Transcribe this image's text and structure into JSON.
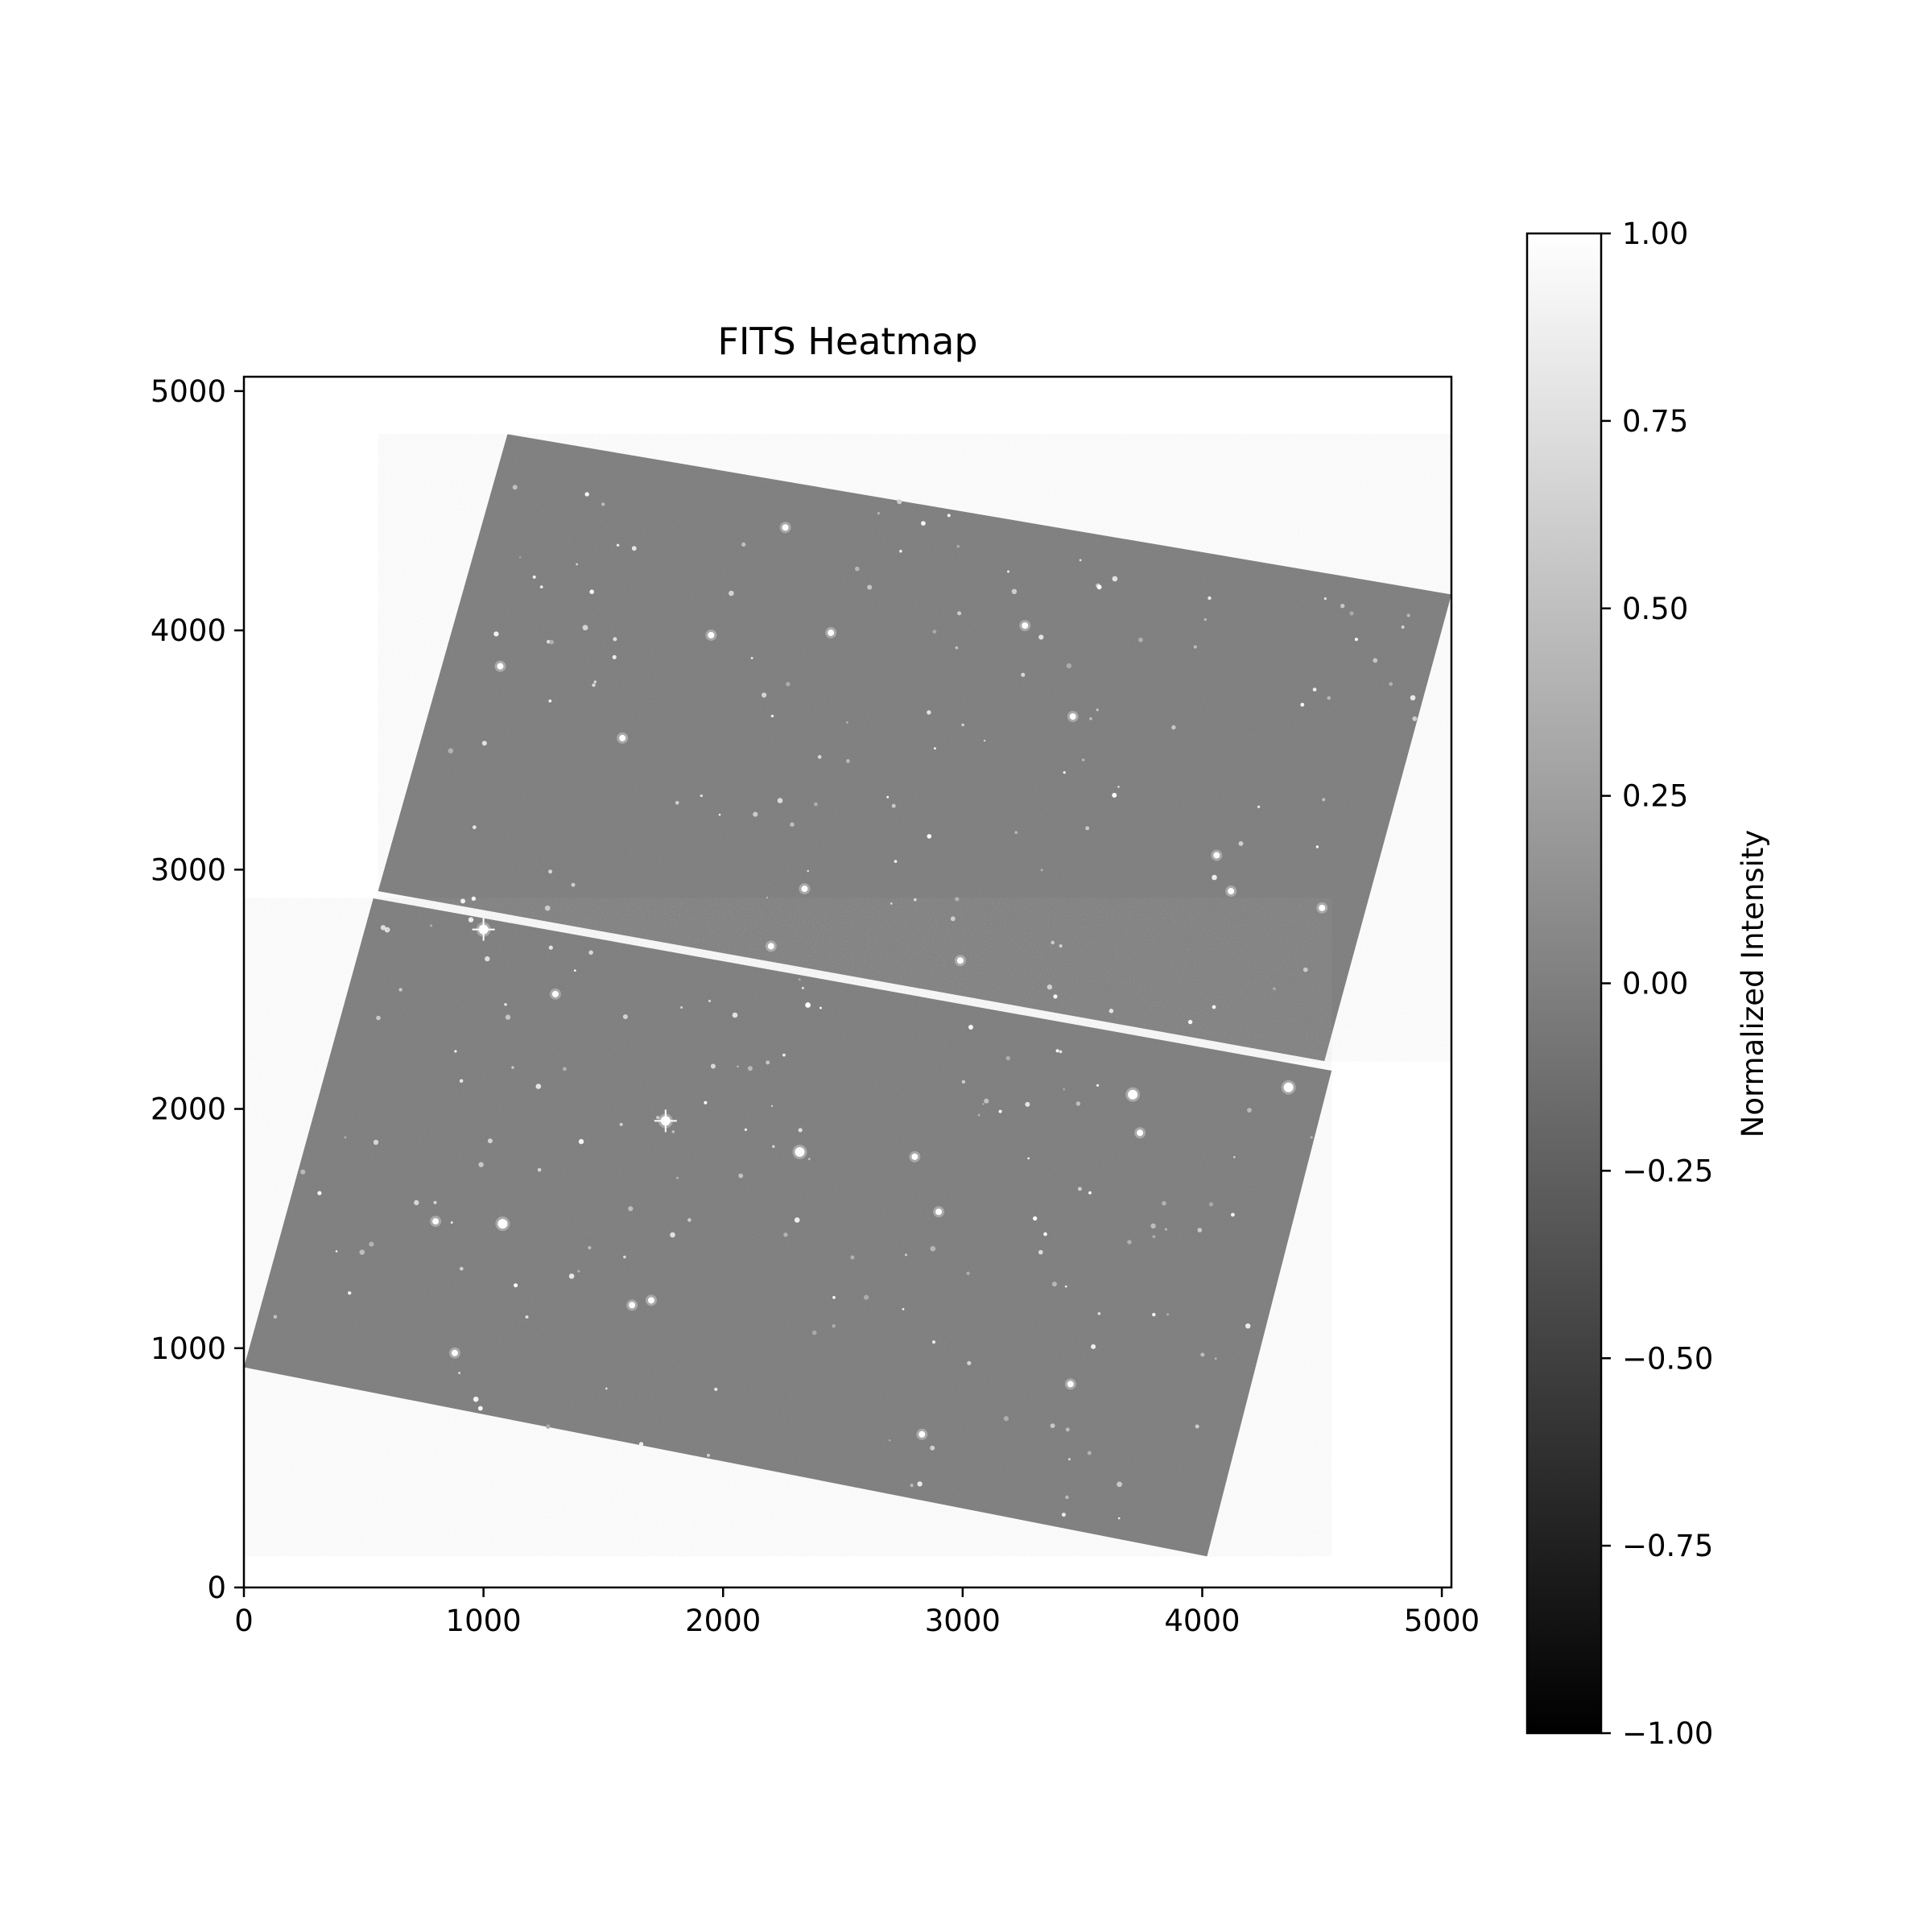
{
  "chart_data": {
    "type": "heatmap",
    "title": "FITS Heatmap",
    "xlabel": "",
    "ylabel": "",
    "xlim": [
      0,
      5040
    ],
    "ylim": [
      0,
      5060
    ],
    "x_ticks": [
      0,
      1000,
      2000,
      3000,
      4000,
      5000
    ],
    "y_ticks": [
      0,
      1000,
      2000,
      3000,
      4000,
      5000
    ],
    "x_tick_labels": [
      "0",
      "1000",
      "2000",
      "3000",
      "4000",
      "5000"
    ],
    "y_tick_labels": [
      "0",
      "1000",
      "2000",
      "3000",
      "4000",
      "5000"
    ],
    "colormap": "gray",
    "colorbar": {
      "label": "Normalized Intensity",
      "range": [
        -1.0,
        1.0
      ],
      "ticks": [
        1.0,
        0.75,
        0.5,
        0.25,
        0.0,
        -0.25,
        -0.5,
        -0.75,
        -1.0
      ],
      "tick_labels": [
        "1.00",
        "0.75",
        "0.50",
        "0.25",
        "0.00",
        "−0.25",
        "−0.50",
        "−0.75",
        "−1.00"
      ]
    },
    "background_level": -0.1,
    "background_color": "#7c7c7c",
    "chips": [
      {
        "name": "upper-chip",
        "corners": [
          [
            560,
            2910
          ],
          [
            1100,
            4820
          ],
          [
            5040,
            4150
          ],
          [
            4510,
            2200
          ]
        ]
      },
      {
        "name": "lower-chip",
        "corners": [
          [
            0,
            920
          ],
          [
            540,
            2880
          ],
          [
            4540,
            2160
          ],
          [
            4020,
            130
          ]
        ]
      }
    ],
    "bright_sources": [
      [
        1000,
        2750
      ],
      [
        1760,
        1950
      ],
      [
        2320,
        1820
      ],
      [
        1080,
        1520
      ],
      [
        3710,
        2060
      ],
      [
        4360,
        2090
      ],
      [
        2260,
        4430
      ],
      [
        1950,
        3980
      ],
      [
        3260,
        4020
      ],
      [
        1580,
        3550
      ],
      [
        2340,
        2920
      ],
      [
        2990,
        2620
      ],
      [
        4120,
        2910
      ],
      [
        4500,
        2840
      ],
      [
        880,
        980
      ],
      [
        1700,
        1200
      ],
      [
        2830,
        640
      ],
      [
        3450,
        850
      ],
      [
        3740,
        1900
      ],
      [
        2900,
        1570
      ],
      [
        2200,
        2680
      ],
      [
        1620,
        1180
      ],
      [
        2800,
        1800
      ],
      [
        4060,
        3060
      ],
      [
        3460,
        3640
      ],
      [
        2450,
        3990
      ],
      [
        1070,
        3850
      ],
      [
        1300,
        2480
      ],
      [
        800,
        1530
      ]
    ],
    "faint_sources_count": 260
  }
}
